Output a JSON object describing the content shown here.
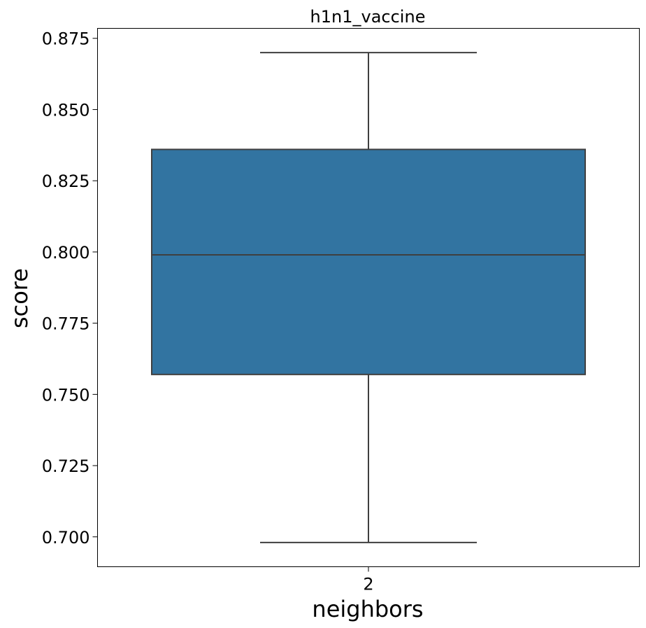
{
  "chart_data": {
    "type": "box",
    "title": "h1n1_vaccine",
    "xlabel": "neighbors",
    "ylabel": "score",
    "categories": [
      "2"
    ],
    "boxes": [
      {
        "category": "2",
        "whisker_low": 0.698,
        "q1": 0.757,
        "median": 0.799,
        "q3": 0.836,
        "whisker_high": 0.87
      }
    ],
    "ylim": [
      0.6895,
      0.8785
    ],
    "yticks": [
      0.7,
      0.725,
      0.75,
      0.775,
      0.8,
      0.825,
      0.85,
      0.875
    ],
    "ytick_labels": [
      "0.700",
      "0.725",
      "0.750",
      "0.775",
      "0.800",
      "0.825",
      "0.850",
      "0.875"
    ],
    "grid": false,
    "colors": {
      "box_fill": "#3274a1",
      "lines": "#3f3f3f"
    }
  }
}
